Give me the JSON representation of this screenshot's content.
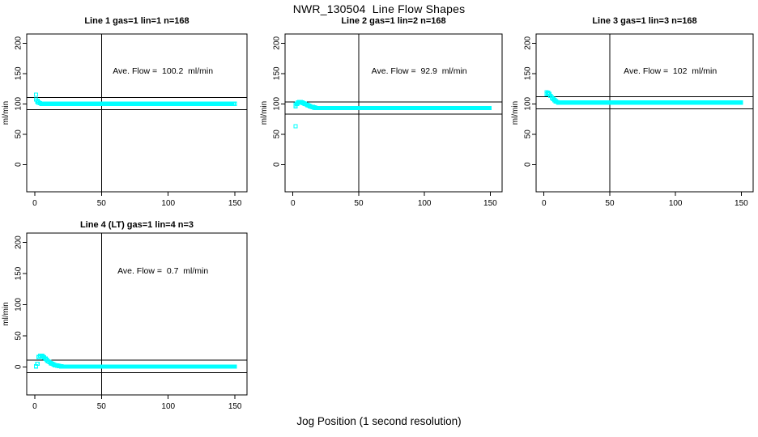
{
  "page": {
    "main_title": "NWR_130504  Line Flow Shapes",
    "x_axis_caption": "Jog Position (1 second resolution)",
    "background_color": "#ffffff",
    "marker_color": "#00ffff",
    "axis_color": "#000000"
  },
  "chart_data": [
    {
      "type": "scatter",
      "title": "Line 1 gas=1 lin=1 n=168",
      "annotation": "Ave. Flow =  100.2  ml/min",
      "ave_flow": 100.2,
      "ylabel": "ml/min",
      "xlim": [
        -6,
        159
      ],
      "ylim": [
        -45,
        215
      ],
      "xticks": [
        0,
        50,
        100,
        150
      ],
      "yticks": [
        0,
        50,
        100,
        150,
        200
      ],
      "vline_x": 50,
      "hlines": [
        110.2,
        90.2
      ],
      "annotation_xy": [
        96,
        150
      ],
      "start_points": [
        [
          1,
          115
        ],
        [
          1,
          107
        ],
        [
          2,
          105
        ],
        [
          2,
          103
        ],
        [
          3,
          102
        ],
        [
          4,
          101
        ]
      ],
      "steady_segment": {
        "x_start": 5,
        "x_end": 150,
        "x_step": 0.9,
        "value": 100
      },
      "n": 168
    },
    {
      "type": "scatter",
      "title": "Line 2 gas=1 lin=2 n=168",
      "annotation": "Ave. Flow =  92.9  ml/min",
      "ave_flow": 92.9,
      "ylabel": "ml/min",
      "xlim": [
        -6,
        159
      ],
      "ylim": [
        -45,
        215
      ],
      "xticks": [
        0,
        50,
        100,
        150
      ],
      "yticks": [
        0,
        50,
        100,
        150,
        200
      ],
      "vline_x": 50,
      "hlines": [
        102.9,
        82.9
      ],
      "annotation_xy": [
        96,
        150
      ],
      "start_points": [
        [
          2,
          63
        ],
        [
          2,
          96
        ],
        [
          2,
          99
        ],
        [
          3,
          100
        ],
        [
          4,
          102
        ],
        [
          5,
          103
        ],
        [
          6,
          103
        ],
        [
          7,
          102
        ],
        [
          8,
          101
        ],
        [
          9,
          100
        ],
        [
          10,
          99
        ],
        [
          11,
          98
        ],
        [
          12,
          97
        ],
        [
          13,
          96
        ],
        [
          14,
          95
        ],
        [
          15,
          94.5
        ],
        [
          16,
          94
        ],
        [
          17,
          93.5
        ]
      ],
      "steady_segment": {
        "x_start": 18,
        "x_end": 150,
        "x_step": 0.9,
        "value": 93
      },
      "n": 168
    },
    {
      "type": "scatter",
      "title": "Line 3 gas=1 lin=3 n=168",
      "annotation": "Ave. Flow =  102  ml/min",
      "ave_flow": 102,
      "ylabel": "ml/min",
      "xlim": [
        -6,
        159
      ],
      "ylim": [
        -45,
        215
      ],
      "xticks": [
        0,
        50,
        100,
        150
      ],
      "yticks": [
        0,
        50,
        100,
        150,
        200
      ],
      "vline_x": 50,
      "hlines": [
        112,
        92
      ],
      "annotation_xy": [
        96,
        150
      ],
      "start_points": [
        [
          2,
          116
        ],
        [
          2,
          119
        ],
        [
          3,
          118
        ],
        [
          4,
          116
        ],
        [
          5,
          113
        ],
        [
          6,
          110
        ],
        [
          7,
          108
        ],
        [
          8,
          106
        ],
        [
          9,
          104
        ],
        [
          10,
          103
        ]
      ],
      "steady_segment": {
        "x_start": 11,
        "x_end": 150,
        "x_step": 0.9,
        "value": 102
      },
      "n": 168
    },
    {
      "type": "scatter",
      "title": "Line 4 (LT) gas=1 lin=4 n=3",
      "annotation": "Ave. Flow =  0.7  ml/min",
      "ave_flow": 0.7,
      "ylabel": "ml/min",
      "xlim": [
        -6,
        159
      ],
      "ylim": [
        -45,
        215
      ],
      "xticks": [
        0,
        50,
        100,
        150
      ],
      "yticks": [
        0,
        50,
        100,
        150,
        200
      ],
      "vline_x": 50,
      "hlines": [
        10.7,
        -9.3
      ],
      "annotation_xy": [
        96,
        150
      ],
      "start_points": [
        [
          1,
          1
        ],
        [
          2,
          5
        ],
        [
          3,
          16
        ],
        [
          4,
          18
        ],
        [
          5,
          18
        ],
        [
          6,
          17
        ],
        [
          7,
          15
        ],
        [
          8,
          13
        ],
        [
          9,
          11
        ],
        [
          10,
          9
        ],
        [
          11,
          8
        ],
        [
          12,
          6
        ],
        [
          13,
          5
        ],
        [
          14,
          4
        ],
        [
          15,
          3
        ],
        [
          16,
          2.5
        ],
        [
          17,
          2
        ],
        [
          18,
          1.5
        ],
        [
          19,
          1.2
        ],
        [
          20,
          1
        ]
      ],
      "steady_segment": {
        "x_start": 21,
        "x_end": 150,
        "x_step": 0.9,
        "value": 0.5
      },
      "n": 3
    }
  ]
}
